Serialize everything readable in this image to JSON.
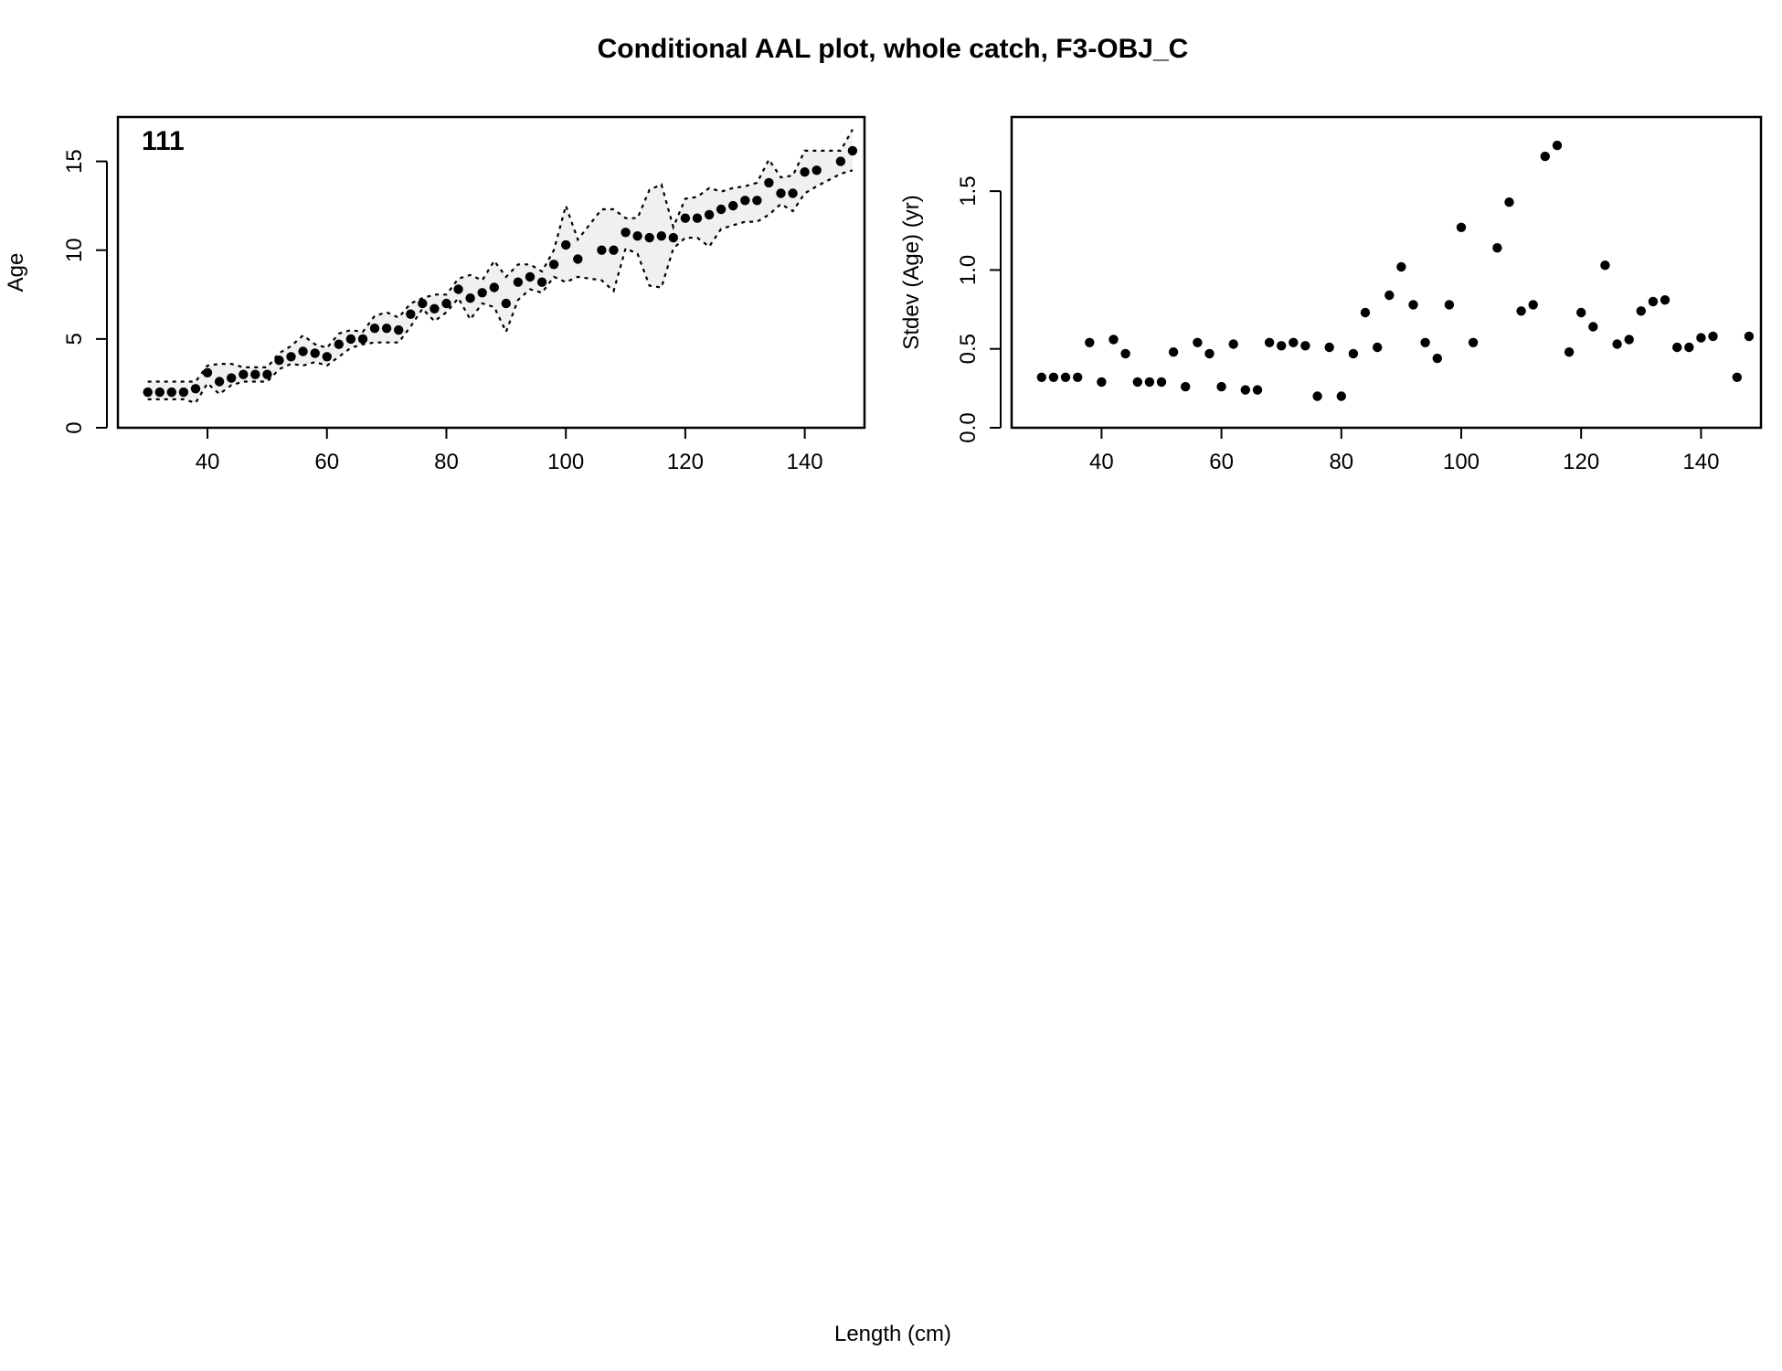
{
  "figure": {
    "title": "Conditional AAL plot, whole catch, F3-OBJ_C",
    "shared_xlabel": "Length (cm)"
  },
  "chart_data": [
    {
      "type": "scatter",
      "panel_label": "111",
      "xlabel": "",
      "ylabel": "Age",
      "xlim": [
        25,
        150
      ],
      "ylim": [
        0,
        17.5
      ],
      "xticks": [
        40,
        60,
        80,
        100,
        120,
        140
      ],
      "yticks": [
        0,
        5,
        10,
        15
      ],
      "band": "observed mean age with dotted interval bounds and light grey shaded region",
      "band_color": "#f0f0f0",
      "point_color": "#000000",
      "x": [
        30,
        32,
        34,
        36,
        38,
        40,
        42,
        44,
        46,
        48,
        50,
        52,
        54,
        56,
        58,
        60,
        62,
        64,
        66,
        68,
        70,
        72,
        74,
        76,
        78,
        80,
        82,
        84,
        86,
        88,
        90,
        92,
        94,
        96,
        98,
        100,
        102,
        106,
        108,
        110,
        112,
        114,
        116,
        118,
        120,
        122,
        124,
        126,
        128,
        130,
        132,
        134,
        136,
        138,
        140,
        142,
        146,
        148
      ],
      "y": [
        2.0,
        2.0,
        2.0,
        2.0,
        2.2,
        3.1,
        2.6,
        2.8,
        3.0,
        3.0,
        3.0,
        3.8,
        4.0,
        4.3,
        4.2,
        4.0,
        4.7,
        5.0,
        5.0,
        5.6,
        5.6,
        5.5,
        6.4,
        7.0,
        6.7,
        7.0,
        7.8,
        7.3,
        7.6,
        7.9,
        7.0,
        8.2,
        8.5,
        8.2,
        9.2,
        10.3,
        9.5,
        10.0,
        10.0,
        11.0,
        10.8,
        10.7,
        10.8,
        10.7,
        11.8,
        11.8,
        12.0,
        12.3,
        12.5,
        12.8,
        12.8,
        13.8,
        13.2,
        13.2,
        14.4,
        14.5,
        15.0,
        15.6
      ],
      "upper": [
        2.6,
        2.6,
        2.6,
        2.6,
        2.6,
        3.5,
        3.6,
        3.6,
        3.4,
        3.4,
        3.4,
        4.2,
        4.6,
        5.2,
        4.7,
        4.5,
        5.3,
        5.5,
        5.4,
        6.3,
        6.5,
        6.2,
        7.0,
        7.3,
        7.5,
        7.5,
        8.4,
        8.6,
        8.3,
        9.4,
        8.5,
        9.2,
        9.2,
        8.8,
        10.0,
        12.5,
        10.6,
        12.3,
        12.3,
        11.8,
        11.8,
        13.4,
        13.7,
        11.3,
        12.9,
        13.0,
        13.5,
        13.3,
        13.5,
        13.6,
        13.8,
        15.1,
        14.1,
        14.2,
        15.6,
        15.6,
        15.6,
        16.8
      ],
      "lower": [
        1.6,
        1.6,
        1.6,
        1.6,
        1.4,
        2.5,
        1.9,
        2.4,
        2.6,
        2.6,
        2.6,
        3.3,
        3.6,
        3.5,
        3.7,
        3.5,
        4.0,
        4.5,
        4.7,
        4.8,
        4.8,
        4.8,
        5.7,
        6.7,
        6.0,
        6.5,
        7.3,
        6.1,
        7.0,
        6.8,
        5.4,
        7.2,
        7.8,
        7.6,
        8.5,
        8.2,
        8.5,
        8.3,
        7.7,
        10.1,
        9.8,
        8.0,
        7.9,
        10.1,
        10.7,
        10.7,
        10.2,
        11.2,
        11.4,
        11.6,
        11.6,
        12.0,
        12.6,
        12.2,
        13.2,
        13.6,
        14.3,
        14.5
      ]
    },
    {
      "type": "scatter",
      "xlabel": "",
      "ylabel": "Stdev (Age) (yr)",
      "xlim": [
        25,
        150
      ],
      "ylim": [
        0,
        1.97
      ],
      "xticks": [
        40,
        60,
        80,
        100,
        120,
        140
      ],
      "yticks": [
        "0.0",
        "0.5",
        "1.0",
        "1.5"
      ],
      "point_color": "#000000",
      "x": [
        30,
        32,
        34,
        36,
        38,
        40,
        42,
        44,
        46,
        48,
        50,
        52,
        54,
        56,
        58,
        60,
        62,
        64,
        66,
        68,
        70,
        72,
        74,
        76,
        78,
        80,
        82,
        84,
        86,
        88,
        90,
        92,
        94,
        96,
        98,
        100,
        102,
        106,
        108,
        110,
        112,
        114,
        116,
        118,
        120,
        122,
        124,
        126,
        128,
        130,
        132,
        134,
        136,
        138,
        140,
        142,
        146,
        148
      ],
      "y": [
        0.32,
        0.32,
        0.32,
        0.32,
        0.54,
        0.29,
        0.56,
        0.47,
        0.29,
        0.29,
        0.29,
        0.48,
        0.26,
        0.54,
        0.47,
        0.26,
        0.53,
        0.24,
        0.24,
        0.54,
        0.52,
        0.54,
        0.52,
        0.2,
        0.51,
        0.2,
        0.47,
        0.73,
        0.51,
        0.84,
        1.02,
        0.78,
        0.54,
        0.44,
        0.78,
        1.27,
        0.54,
        1.14,
        1.43,
        0.74,
        0.78,
        1.72,
        1.79,
        0.48,
        0.73,
        0.64,
        1.03,
        0.53,
        0.56,
        0.74,
        0.8,
        0.81,
        0.51,
        0.51,
        0.57,
        0.58,
        0.32,
        0.58
      ]
    }
  ]
}
